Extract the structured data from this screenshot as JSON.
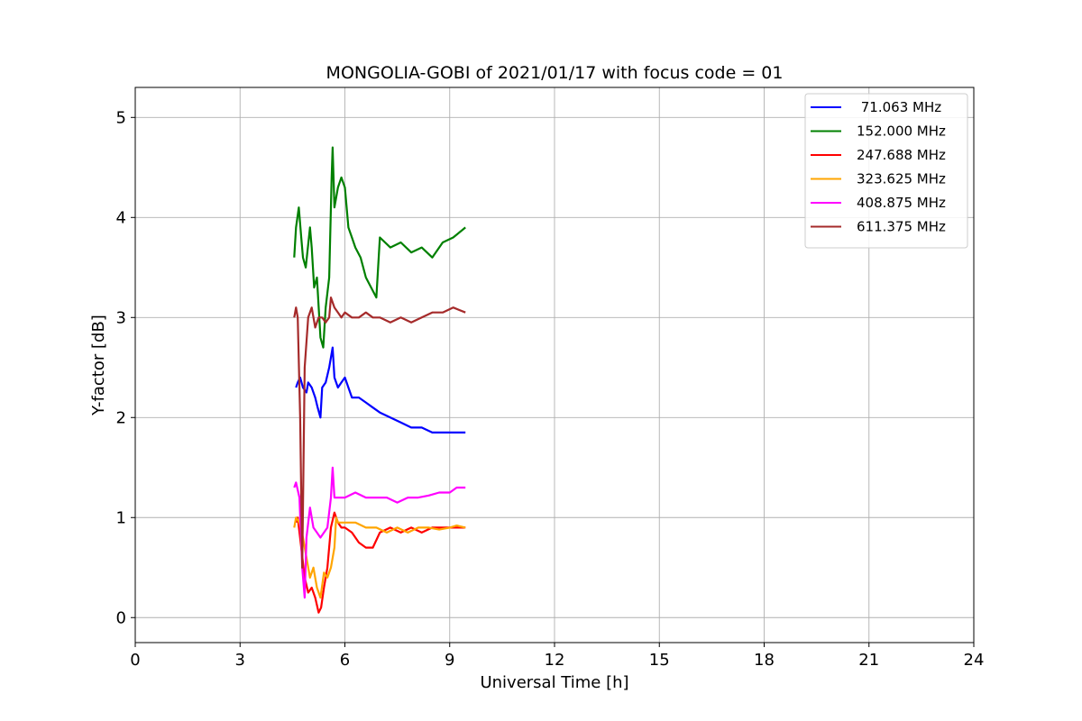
{
  "chart_data": {
    "type": "line",
    "title": "MONGOLIA-GOBI of 2021/01/17 with focus code = 01",
    "xlabel": "Universal Time [h]",
    "ylabel": "Y-factor [dB]",
    "xlim": [
      0,
      24
    ],
    "ylim": [
      -0.25,
      5.3
    ],
    "xticks": [
      0,
      3,
      6,
      9,
      12,
      15,
      18,
      21,
      24
    ],
    "yticks": [
      0,
      1,
      2,
      3,
      4,
      5
    ],
    "grid": true,
    "legend_position": "top-right",
    "series": [
      {
        "name": " 71.063 MHz",
        "color": "#0000ff",
        "x": [
          4.6,
          4.65,
          4.72,
          4.8,
          4.9,
          4.95,
          5.05,
          5.15,
          5.22,
          5.3,
          5.35,
          5.45,
          5.55,
          5.65,
          5.7,
          5.8,
          5.9,
          6.0,
          6.1,
          6.2,
          6.4,
          6.6,
          6.8,
          7.0,
          7.3,
          7.6,
          7.9,
          8.2,
          8.5,
          8.8,
          9.1,
          9.45
        ],
        "y": [
          2.3,
          2.35,
          2.4,
          2.3,
          2.25,
          2.35,
          2.3,
          2.2,
          2.1,
          2.0,
          2.3,
          2.35,
          2.5,
          2.7,
          2.4,
          2.3,
          2.35,
          2.4,
          2.3,
          2.2,
          2.2,
          2.15,
          2.1,
          2.05,
          2.0,
          1.95,
          1.9,
          1.9,
          1.85,
          1.85,
          1.85,
          1.85
        ]
      },
      {
        "name": "152.000 MHz",
        "color": "#008000",
        "x": [
          4.55,
          4.6,
          4.68,
          4.75,
          4.8,
          4.88,
          5.0,
          5.05,
          5.12,
          5.2,
          5.3,
          5.38,
          5.45,
          5.55,
          5.62,
          5.65,
          5.7,
          5.8,
          5.9,
          6.0,
          6.1,
          6.2,
          6.3,
          6.45,
          6.6,
          6.75,
          6.9,
          7.0,
          7.3,
          7.6,
          7.9,
          8.2,
          8.5,
          8.8,
          9.1,
          9.45
        ],
        "y": [
          3.6,
          3.9,
          4.1,
          3.8,
          3.6,
          3.5,
          3.9,
          3.7,
          3.3,
          3.4,
          2.8,
          2.7,
          3.1,
          3.4,
          4.4,
          4.7,
          4.1,
          4.3,
          4.4,
          4.3,
          3.9,
          3.8,
          3.7,
          3.6,
          3.4,
          3.3,
          3.2,
          3.8,
          3.7,
          3.75,
          3.65,
          3.7,
          3.6,
          3.75,
          3.8,
          3.9
        ]
      },
      {
        "name": "247.688 MHz",
        "color": "#ff0000",
        "x": [
          4.6,
          4.65,
          4.75,
          4.85,
          4.95,
          5.05,
          5.15,
          5.25,
          5.32,
          5.4,
          5.5,
          5.6,
          5.7,
          5.8,
          5.9,
          6.0,
          6.2,
          6.4,
          6.6,
          6.8,
          7.0,
          7.3,
          7.6,
          7.9,
          8.2,
          8.5,
          8.8,
          9.1,
          9.45
        ],
        "y": [
          0.95,
          1.0,
          0.7,
          0.4,
          0.25,
          0.3,
          0.2,
          0.05,
          0.1,
          0.3,
          0.5,
          0.9,
          1.05,
          0.95,
          0.9,
          0.9,
          0.85,
          0.75,
          0.7,
          0.7,
          0.85,
          0.9,
          0.85,
          0.9,
          0.85,
          0.9,
          0.9,
          0.9,
          0.9
        ]
      },
      {
        "name": "323.625 MHz",
        "color": "#ffa500",
        "x": [
          4.55,
          4.6,
          4.7,
          4.8,
          4.9,
          5.0,
          5.1,
          5.2,
          5.3,
          5.4,
          5.5,
          5.6,
          5.7,
          5.75,
          5.8,
          5.9,
          6.0,
          6.3,
          6.6,
          6.9,
          7.2,
          7.5,
          7.8,
          8.1,
          8.4,
          8.7,
          9.0,
          9.2,
          9.45
        ],
        "y": [
          0.9,
          1.0,
          0.95,
          0.8,
          0.6,
          0.4,
          0.5,
          0.3,
          0.2,
          0.45,
          0.4,
          0.5,
          0.7,
          1.0,
          0.95,
          0.95,
          0.95,
          0.95,
          0.9,
          0.9,
          0.85,
          0.9,
          0.85,
          0.9,
          0.9,
          0.88,
          0.9,
          0.92,
          0.9
        ]
      },
      {
        "name": "408.875 MHz",
        "color": "#ff00ff",
        "x": [
          4.55,
          4.6,
          4.7,
          4.78,
          4.85,
          4.9,
          5.0,
          5.1,
          5.2,
          5.3,
          5.4,
          5.5,
          5.6,
          5.65,
          5.7,
          5.8,
          6.0,
          6.3,
          6.6,
          6.9,
          7.2,
          7.5,
          7.8,
          8.1,
          8.4,
          8.7,
          9.0,
          9.2,
          9.45
        ],
        "y": [
          1.3,
          1.35,
          1.2,
          0.5,
          0.2,
          0.8,
          1.1,
          0.9,
          0.85,
          0.8,
          0.85,
          0.9,
          1.2,
          1.5,
          1.2,
          1.2,
          1.2,
          1.25,
          1.2,
          1.2,
          1.2,
          1.15,
          1.2,
          1.2,
          1.22,
          1.25,
          1.25,
          1.3,
          1.3
        ]
      },
      {
        "name": "611.375 MHz",
        "color": "#a52a2a",
        "x": [
          4.55,
          4.6,
          4.65,
          4.72,
          4.78,
          4.85,
          4.95,
          5.05,
          5.15,
          5.25,
          5.35,
          5.45,
          5.55,
          5.6,
          5.7,
          5.8,
          5.9,
          6.0,
          6.2,
          6.4,
          6.6,
          6.8,
          7.0,
          7.3,
          7.6,
          7.9,
          8.2,
          8.5,
          8.8,
          9.1,
          9.45
        ],
        "y": [
          3.0,
          3.1,
          3.0,
          2.0,
          0.5,
          2.5,
          3.0,
          3.1,
          2.9,
          3.0,
          3.0,
          2.95,
          3.0,
          3.2,
          3.1,
          3.05,
          3.0,
          3.05,
          3.0,
          3.0,
          3.05,
          3.0,
          3.0,
          2.95,
          3.0,
          2.95,
          3.0,
          3.05,
          3.05,
          3.1,
          3.05
        ]
      }
    ]
  }
}
